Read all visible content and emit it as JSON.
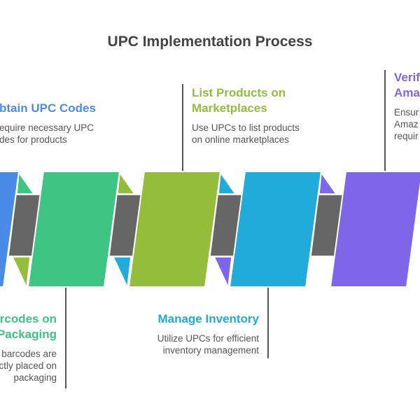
{
  "title": "UPC Implementation Process",
  "colors": {
    "gray": "#666666",
    "line": "#555555"
  },
  "steps": [
    {
      "title": [
        "btain UPC Codes"
      ],
      "desc": [
        "equire necessary UPC",
        "des for products"
      ],
      "color": "#4B8BE8"
    },
    {
      "title": [
        "rcodes on",
        "Packaging"
      ],
      "desc": [
        "barcodes are",
        "ctly placed on",
        "packaging"
      ],
      "color": "#3EC483"
    },
    {
      "title": [
        "List Products on",
        "Marketplaces"
      ],
      "desc": [
        "Use UPCs to list products",
        "on online marketplaces"
      ],
      "color": "#94BD3B"
    },
    {
      "title": [
        "Manage Inventory"
      ],
      "desc": [
        "Utilize UPCs for efficient",
        "inventory management"
      ],
      "color": "#20ABDB"
    },
    {
      "title": [
        "Verif",
        "Ama"
      ],
      "desc": [
        "Ensur",
        "Amaz",
        "requir"
      ],
      "color": "#7F66E8"
    }
  ]
}
